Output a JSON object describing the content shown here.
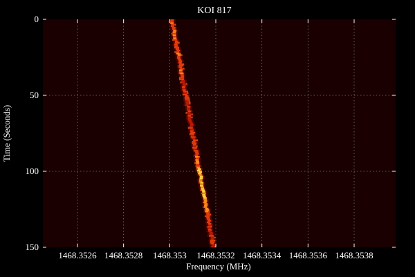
{
  "chart_data": {
    "type": "heatmap",
    "title": "KOI 817",
    "xlabel": "Frequency (MHz)",
    "ylabel": "Time (Seconds)",
    "xlim": [
      1468.35245,
      1468.35398
    ],
    "ylim": [
      150,
      0
    ],
    "x_ticks": [
      1468.3526,
      1468.3528,
      1468.353,
      1468.3532,
      1468.3534,
      1468.3536,
      1468.3538
    ],
    "x_tick_labels": [
      "1468.3526",
      "1468.3528",
      "1468.353",
      "1468.3532",
      "1468.3534",
      "1468.3536",
      "1468.3538"
    ],
    "y_ticks": [
      0,
      50,
      100,
      150
    ],
    "y_tick_labels": [
      "0",
      "50",
      "100",
      "150"
    ],
    "grid": true,
    "colormap": "hot",
    "background_color": "#1a0000",
    "signal": {
      "description_points": [
        {
          "time": 0,
          "frequency": 1468.35301
        },
        {
          "time": 150,
          "frequency": 1468.35319
        }
      ]
    }
  }
}
